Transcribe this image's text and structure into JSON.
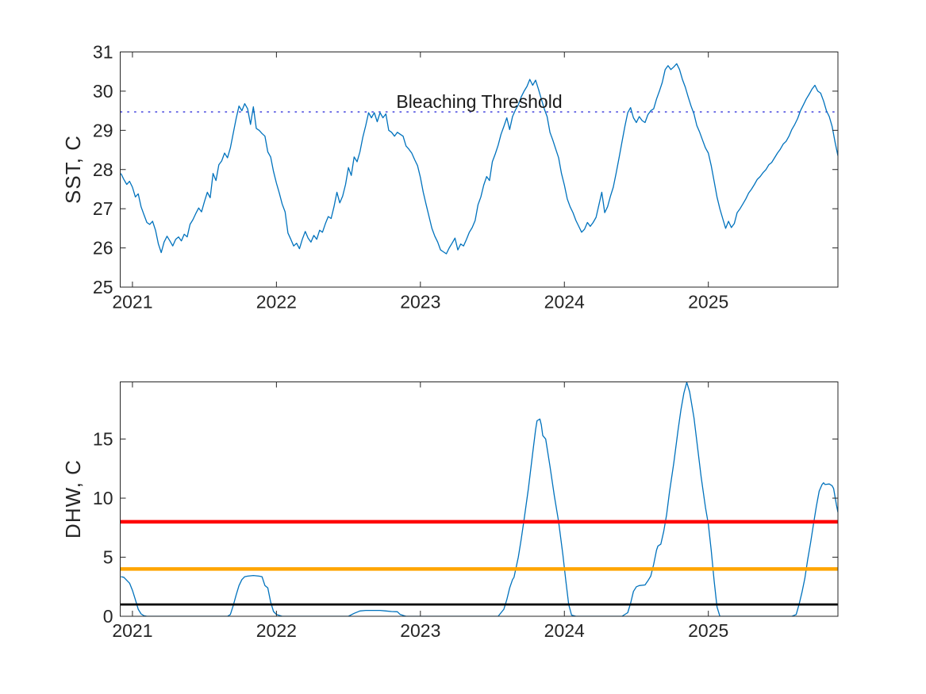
{
  "figure": {
    "background": "#ffffff",
    "axis_color": "#262626",
    "series_color": "#0072BD"
  },
  "chart_data": [
    {
      "type": "line",
      "title": "",
      "xlabel": "",
      "ylabel": "SST, C",
      "grid": false,
      "legend": null,
      "xlim": [
        2020.915,
        2025.9
      ],
      "ylim": [
        25,
        31
      ],
      "xticks": [
        2021,
        2022,
        2023,
        2024,
        2025
      ],
      "xtick_labels": [
        "2021",
        "2022",
        "2023",
        "2024",
        "2025"
      ],
      "yticks": [
        25,
        26,
        27,
        28,
        29,
        30,
        31
      ],
      "ytick_labels": [
        "25",
        "26",
        "27",
        "28",
        "29",
        "30",
        "31"
      ],
      "annotations": [
        {
          "text": "Bleaching Threshold",
          "x": 2023.42,
          "y": 29.6
        }
      ],
      "ref_lines": [
        {
          "label": "bleaching-threshold",
          "value": 29.47,
          "color": "#6D6DE5",
          "style": "dotted",
          "width": 2
        }
      ],
      "series": [
        {
          "name": "SST",
          "color": "#0072BD",
          "width": 1.3,
          "x_start": 2020.92,
          "x_step": 0.02,
          "values": [
            27.9,
            27.75,
            27.62,
            27.7,
            27.55,
            27.3,
            27.38,
            27.05,
            26.85,
            26.65,
            26.6,
            26.68,
            26.45,
            26.1,
            25.88,
            26.15,
            26.3,
            26.18,
            26.05,
            26.22,
            26.28,
            26.18,
            26.35,
            26.28,
            26.6,
            26.72,
            26.88,
            27.02,
            26.92,
            27.18,
            27.42,
            27.28,
            27.9,
            27.72,
            28.12,
            28.22,
            28.42,
            28.3,
            28.55,
            28.92,
            29.3,
            29.62,
            29.5,
            29.68,
            29.55,
            29.15,
            29.6,
            29.05,
            29.0,
            28.92,
            28.85,
            28.45,
            28.32,
            27.95,
            27.65,
            27.4,
            27.12,
            26.92,
            26.38,
            26.22,
            26.05,
            26.12,
            25.98,
            26.22,
            26.42,
            26.25,
            26.15,
            26.32,
            26.22,
            26.45,
            26.4,
            26.62,
            26.8,
            26.75,
            27.05,
            27.42,
            27.15,
            27.32,
            27.62,
            28.05,
            27.85,
            28.32,
            28.2,
            28.45,
            28.82,
            29.12,
            29.45,
            29.32,
            29.45,
            29.22,
            29.45,
            29.32,
            29.42,
            29.0,
            28.95,
            28.85,
            28.95,
            28.9,
            28.85,
            28.6,
            28.52,
            28.42,
            28.25,
            28.1,
            27.8,
            27.42,
            27.1,
            26.8,
            26.5,
            26.3,
            26.15,
            25.95,
            25.9,
            25.85,
            26.0,
            26.12,
            26.25,
            25.95,
            26.1,
            26.05,
            26.22,
            26.4,
            26.52,
            26.7,
            27.1,
            27.3,
            27.6,
            27.82,
            27.72,
            28.2,
            28.4,
            28.62,
            28.9,
            29.1,
            29.32,
            29.02,
            29.35,
            29.52,
            29.65,
            29.85,
            30.0,
            30.12,
            30.3,
            30.15,
            30.28,
            30.05,
            29.8,
            29.55,
            29.35,
            28.95,
            28.75,
            28.52,
            28.3,
            27.9,
            27.6,
            27.25,
            27.05,
            26.9,
            26.7,
            26.55,
            26.4,
            26.48,
            26.65,
            26.55,
            26.65,
            26.78,
            27.1,
            27.42,
            26.9,
            27.05,
            27.32,
            27.55,
            27.92,
            28.3,
            28.7,
            29.1,
            29.45,
            29.58,
            29.32,
            29.2,
            29.35,
            29.25,
            29.2,
            29.4,
            29.5,
            29.55,
            29.8,
            30.0,
            30.22,
            30.55,
            30.65,
            30.55,
            30.62,
            30.7,
            30.55,
            30.3,
            30.1,
            29.85,
            29.62,
            29.42,
            29.12,
            28.95,
            28.75,
            28.55,
            28.42,
            28.1,
            27.7,
            27.3,
            27.0,
            26.75,
            26.5,
            26.68,
            26.52,
            26.62,
            26.9,
            27.0,
            27.12,
            27.25,
            27.4,
            27.5,
            27.62,
            27.75,
            27.82,
            27.92,
            28.0,
            28.12,
            28.18,
            28.3,
            28.42,
            28.52,
            28.65,
            28.72,
            28.85,
            29.02,
            29.15,
            29.3,
            29.5,
            29.65,
            29.8,
            29.92,
            30.05,
            30.15,
            30.0,
            29.95,
            29.75,
            29.5,
            29.35,
            29.1,
            28.7,
            28.35
          ]
        }
      ]
    },
    {
      "type": "line",
      "title": "",
      "xlabel": "",
      "ylabel": "DHW, C",
      "grid": false,
      "legend": null,
      "xlim": [
        2020.915,
        2025.9
      ],
      "ylim": [
        0,
        19.84
      ],
      "xticks": [
        2021,
        2022,
        2023,
        2024,
        2025
      ],
      "xtick_labels": [
        "2021",
        "2022",
        "2023",
        "2024",
        "2025"
      ],
      "yticks": [
        0,
        5,
        10,
        15
      ],
      "ytick_labels": [
        "0",
        "5",
        "10",
        "15"
      ],
      "annotations": [],
      "ref_lines": [
        {
          "label": "alert-level-2",
          "value": 8,
          "color": "#FF0000",
          "style": "solid",
          "width": 4.5
        },
        {
          "label": "alert-level-1",
          "value": 4,
          "color": "#FFA500",
          "style": "solid",
          "width": 4.5
        },
        {
          "label": "bleaching-watch",
          "value": 1,
          "color": "#000000",
          "style": "solid",
          "width": 2.8
        }
      ],
      "series": [
        {
          "name": "DHW",
          "color": "#0072BD",
          "width": 1.3,
          "points": [
            [
              2020.92,
              3.35
            ],
            [
              2020.94,
              3.3
            ],
            [
              2020.98,
              2.8
            ],
            [
              2021.0,
              2.2
            ],
            [
              2021.02,
              1.4
            ],
            [
              2021.04,
              0.6
            ],
            [
              2021.06,
              0.2
            ],
            [
              2021.08,
              0.05
            ],
            [
              2021.1,
              0
            ],
            [
              2021.66,
              0
            ],
            [
              2021.68,
              0.15
            ],
            [
              2021.7,
              0.9
            ],
            [
              2021.72,
              1.8
            ],
            [
              2021.74,
              2.6
            ],
            [
              2021.76,
              3.1
            ],
            [
              2021.78,
              3.35
            ],
            [
              2021.8,
              3.4
            ],
            [
              2021.84,
              3.45
            ],
            [
              2021.88,
              3.4
            ],
            [
              2021.9,
              3.35
            ],
            [
              2021.92,
              2.6
            ],
            [
              2021.94,
              2.4
            ],
            [
              2021.96,
              1.2
            ],
            [
              2021.98,
              0.4
            ],
            [
              2022.0,
              0.15
            ],
            [
              2022.04,
              0
            ],
            [
              2022.5,
              0
            ],
            [
              2022.54,
              0.25
            ],
            [
              2022.58,
              0.45
            ],
            [
              2022.62,
              0.5
            ],
            [
              2022.72,
              0.5
            ],
            [
              2022.76,
              0.45
            ],
            [
              2022.8,
              0.4
            ],
            [
              2022.84,
              0.38
            ],
            [
              2022.86,
              0.15
            ],
            [
              2022.9,
              0
            ],
            [
              2023.54,
              0
            ],
            [
              2023.58,
              0.6
            ],
            [
              2023.6,
              1.4
            ],
            [
              2023.62,
              2.4
            ],
            [
              2023.64,
              3.1
            ],
            [
              2023.65,
              3.3
            ],
            [
              2023.68,
              5.0
            ],
            [
              2023.7,
              6.5
            ],
            [
              2023.72,
              8.2
            ],
            [
              2023.75,
              10.8
            ],
            [
              2023.78,
              13.8
            ],
            [
              2023.8,
              15.8
            ],
            [
              2023.81,
              16.55
            ],
            [
              2023.83,
              16.7
            ],
            [
              2023.84,
              16.2
            ],
            [
              2023.85,
              15.3
            ],
            [
              2023.87,
              15.0
            ],
            [
              2023.9,
              12.7
            ],
            [
              2023.93,
              10.2
            ],
            [
              2023.96,
              8.0
            ],
            [
              2023.99,
              5.2
            ],
            [
              2024.01,
              3.0
            ],
            [
              2024.03,
              1.0
            ],
            [
              2024.05,
              0.1
            ],
            [
              2024.08,
              0
            ],
            [
              2024.4,
              0
            ],
            [
              2024.44,
              0.3
            ],
            [
              2024.46,
              1.1
            ],
            [
              2024.48,
              2.1
            ],
            [
              2024.5,
              2.5
            ],
            [
              2024.52,
              2.6
            ],
            [
              2024.56,
              2.65
            ],
            [
              2024.58,
              3.0
            ],
            [
              2024.6,
              3.4
            ],
            [
              2024.62,
              4.4
            ],
            [
              2024.64,
              5.6
            ],
            [
              2024.65,
              5.95
            ],
            [
              2024.67,
              6.1
            ],
            [
              2024.69,
              7.2
            ],
            [
              2024.71,
              8.6
            ],
            [
              2024.73,
              10.5
            ],
            [
              2024.76,
              13.0
            ],
            [
              2024.79,
              15.8
            ],
            [
              2024.81,
              17.5
            ],
            [
              2024.83,
              18.9
            ],
            [
              2024.85,
              19.8
            ],
            [
              2024.87,
              19.0
            ],
            [
              2024.9,
              16.8
            ],
            [
              2024.92,
              14.8
            ],
            [
              2024.95,
              11.8
            ],
            [
              2024.98,
              9.2
            ],
            [
              2025.0,
              7.8
            ],
            [
              2025.02,
              5.6
            ],
            [
              2025.04,
              3.0
            ],
            [
              2025.06,
              0.8
            ],
            [
              2025.08,
              0
            ],
            [
              2025.58,
              0
            ],
            [
              2025.61,
              0.15
            ],
            [
              2025.63,
              1.0
            ],
            [
              2025.65,
              2.0
            ],
            [
              2025.67,
              3.2
            ],
            [
              2025.69,
              4.8
            ],
            [
              2025.71,
              6.2
            ],
            [
              2025.73,
              7.8
            ],
            [
              2025.75,
              9.3
            ],
            [
              2025.77,
              10.6
            ],
            [
              2025.79,
              11.15
            ],
            [
              2025.8,
              11.3
            ],
            [
              2025.81,
              11.15
            ],
            [
              2025.84,
              11.2
            ],
            [
              2025.86,
              11.05
            ],
            [
              2025.87,
              10.8
            ],
            [
              2025.88,
              10.1
            ],
            [
              2025.89,
              9.4
            ],
            [
              2025.9,
              8.8
            ]
          ]
        }
      ]
    }
  ]
}
